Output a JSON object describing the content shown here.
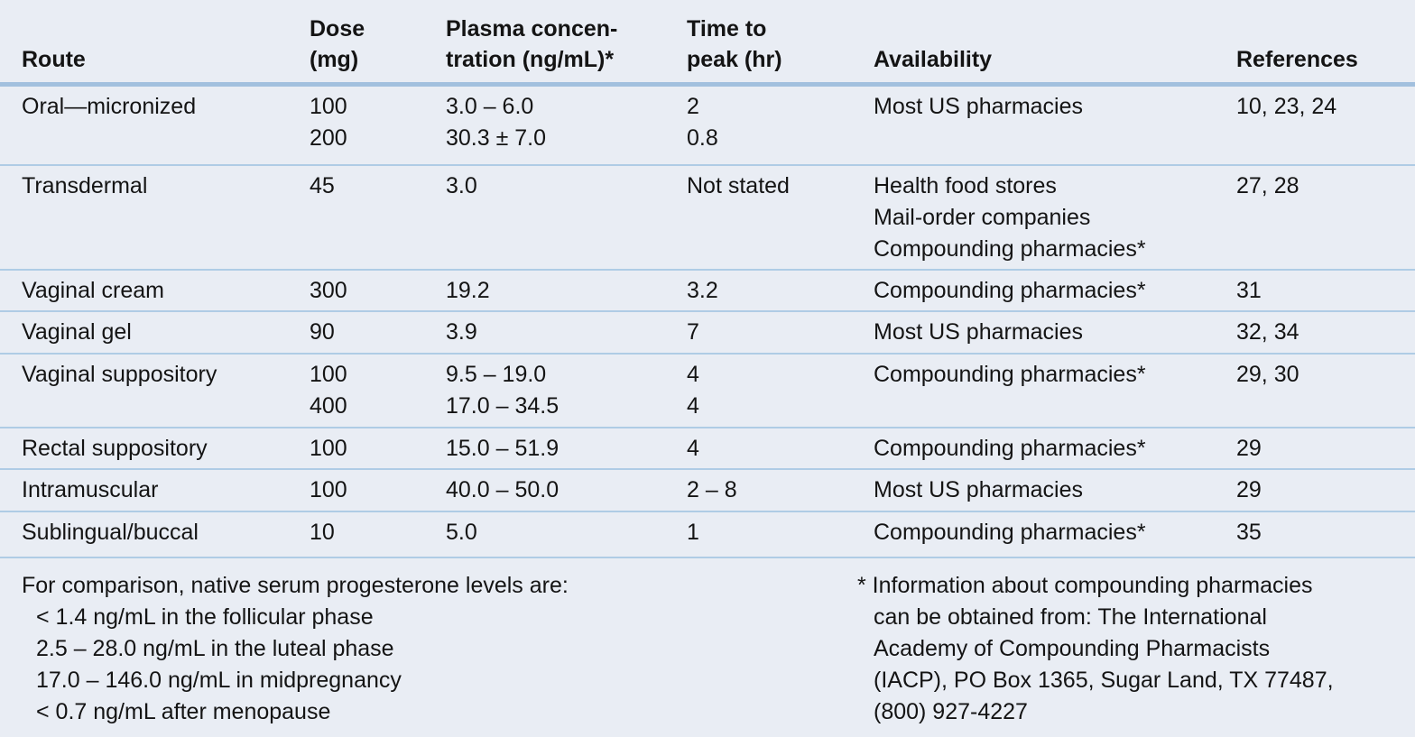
{
  "table": {
    "headers": {
      "route": "Route",
      "dose": "Dose\n(mg)",
      "plasma": "Plasma concen-\ntration (ng/mL)*",
      "peak": "Time to\npeak (hr)",
      "availability": "Availability",
      "references": "References"
    },
    "rows": [
      {
        "route": "Oral—micronized",
        "dose": "100\n200",
        "plasma": "3.0 – 6.0\n30.3 ± 7.0",
        "peak": "2\n0.8",
        "availability": "Most US pharmacies",
        "references": "10, 23, 24"
      },
      {
        "route": "Transdermal",
        "dose": "45",
        "plasma": "3.0",
        "peak": "Not stated",
        "availability": "Health food stores\nMail-order companies\nCompounding pharmacies*",
        "references": "27, 28"
      },
      {
        "route": "Vaginal cream",
        "dose": "300",
        "plasma": "19.2",
        "peak": "3.2",
        "availability": "Compounding pharmacies*",
        "references": "31"
      },
      {
        "route": "Vaginal gel",
        "dose": "90",
        "plasma": "3.9",
        "peak": "7",
        "availability": "Most US pharmacies",
        "references": "32, 34"
      },
      {
        "route": "Vaginal suppository",
        "dose": "100\n400",
        "plasma": "9.5 – 19.0\n17.0 – 34.5",
        "peak": "4\n4",
        "availability": "Compounding pharmacies*",
        "references": "29, 30"
      },
      {
        "route": "Rectal suppository",
        "dose": "100",
        "plasma": "15.0 – 51.9",
        "peak": "4",
        "availability": "Compounding pharmacies*",
        "references": "29"
      },
      {
        "route": "Intramuscular",
        "dose": "100",
        "plasma": "40.0 – 50.0",
        "peak": "2 – 8",
        "availability": "Most US pharmacies",
        "references": "29"
      },
      {
        "route": "Sublingual/buccal",
        "dose": "10",
        "plasma": "5.0",
        "peak": "1",
        "availability": "Compounding pharmacies*",
        "references": "35"
      }
    ]
  },
  "footnotes": {
    "comparison_intro": "For comparison, native serum progesterone levels are:",
    "comparison_items": [
      "< 1.4 ng/mL in the follicular phase",
      "2.5 – 28.0 ng/mL in the luteal phase",
      "17.0 – 146.0 ng/mL in midpregnancy",
      "< 0.7 ng/mL after menopause"
    ],
    "compounding_note": "* Information about compounding pharmacies\ncan be obtained from: The International\nAcademy of Compounding Pharmacists\n(IACP), PO Box 1365, Sugar Land, TX 77487,\n(800) 927-4227"
  },
  "colors": {
    "background": "#e9edf4",
    "header_rule": "#a2c0de",
    "row_rule": "#afcce5",
    "text": "#141414"
  }
}
